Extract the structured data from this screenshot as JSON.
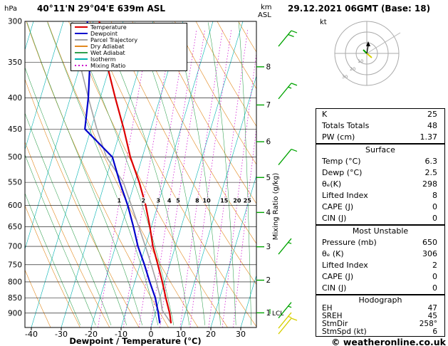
{
  "meta": {
    "station_title": "40°11'N 29°04'E  639m ASL",
    "date_title": "29.12.2021 06GMT (Base: 18)",
    "copyright": "© weatheronline.co.uk"
  },
  "axes": {
    "pressure_unit": "hPa",
    "pressure_ticks": [
      300,
      350,
      400,
      450,
      500,
      550,
      600,
      650,
      700,
      750,
      800,
      850,
      900
    ],
    "temp_ticks": [
      -40,
      -30,
      -20,
      -10,
      0,
      10,
      20,
      30
    ],
    "xlabel": "Dewpoint / Temperature (°C)",
    "right_axis_unit_1": "km",
    "right_axis_unit_2": "ASL",
    "km_ticks": [
      8,
      7,
      6,
      5,
      4,
      3,
      2,
      1
    ],
    "lcl_label": "LCL",
    "mixing_axis_label": "Mixing Ratio (g/kg)",
    "mixing_ratio_ticks": [
      1,
      2,
      3,
      4,
      5,
      8,
      10,
      15,
      20,
      25
    ]
  },
  "legend": [
    {
      "label": "Temperature",
      "color": "#dd0000",
      "dash": ""
    },
    {
      "label": "Dewpoint",
      "color": "#0000cc",
      "dash": ""
    },
    {
      "label": "Parcel Trajectory",
      "color": "#a3a3a3",
      "dash": ""
    },
    {
      "label": "Dry Adiabat",
      "color": "#e2891f",
      "dash": ""
    },
    {
      "label": "Wet Adiabat",
      "color": "#2fa04e",
      "dash": ""
    },
    {
      "label": "Isotherm",
      "color": "#00b2b2",
      "dash": ""
    },
    {
      "label": "Mixing Ratio",
      "color": "#cc00cc",
      "dash": "2,3"
    }
  ],
  "hodograph": {
    "unit": "kt",
    "ring_labels": [
      "10",
      "20",
      "30"
    ]
  },
  "tables": [
    {
      "header": null,
      "rows": [
        [
          "K",
          "25"
        ],
        [
          "Totals Totals",
          "48"
        ],
        [
          "PW (cm)",
          "1.37"
        ]
      ]
    },
    {
      "header": "Surface",
      "rows": [
        [
          "Temp (°C)",
          "6.3"
        ],
        [
          "Dewp (°C)",
          "2.5"
        ],
        [
          "θₑ(K)",
          "298"
        ],
        [
          "Lifted Index",
          "8"
        ],
        [
          "CAPE (J)",
          "0"
        ],
        [
          "CIN (J)",
          "0"
        ]
      ]
    },
    {
      "header": "Most Unstable",
      "rows": [
        [
          "Pressure (mb)",
          "650"
        ],
        [
          "θₑ (K)",
          "306"
        ],
        [
          "Lifted Index",
          "2"
        ],
        [
          "CAPE (J)",
          "0"
        ],
        [
          "CIN (J)",
          "0"
        ]
      ]
    },
    {
      "header": "Hodograph",
      "rows": [
        [
          "EH",
          "47"
        ],
        [
          "SREH",
          "45"
        ],
        [
          "StmDir",
          "258°"
        ],
        [
          "StmSpd (kt)",
          "6"
        ]
      ]
    }
  ],
  "chart_data": {
    "type": "line",
    "title": "Skew-T log-P sounding 40°11'N 29°04'E 639m ASL",
    "x_axis": {
      "label": "Dewpoint / Temperature (°C)",
      "ticks": [
        -40,
        -30,
        -20,
        -10,
        0,
        10,
        20,
        30
      ]
    },
    "y_axis": {
      "label": "hPa",
      "scale": "log",
      "ticks": [
        300,
        350,
        400,
        450,
        500,
        550,
        600,
        650,
        700,
        750,
        800,
        850,
        900
      ],
      "range": [
        300,
        950
      ]
    },
    "secondary_y_axis": {
      "label": "km ASL",
      "ticks": [
        8,
        7,
        6,
        5,
        4,
        3,
        2,
        1
      ],
      "marker": "LCL"
    },
    "mixing_ratio_lines_g_kg": [
      1,
      2,
      3,
      4,
      5,
      8,
      10,
      15,
      20,
      25
    ],
    "series": [
      {
        "name": "Temperature",
        "color": "#dd0000",
        "points": [
          [
            935,
            6.3
          ],
          [
            900,
            4.8
          ],
          [
            850,
            2
          ],
          [
            800,
            -0.8
          ],
          [
            750,
            -4
          ],
          [
            700,
            -7.5
          ],
          [
            650,
            -10.5
          ],
          [
            600,
            -14
          ],
          [
            550,
            -18.5
          ],
          [
            500,
            -24
          ],
          [
            450,
            -29
          ],
          [
            400,
            -35
          ],
          [
            350,
            -41.5
          ],
          [
            300,
            -48
          ]
        ]
      },
      {
        "name": "Dewpoint",
        "color": "#0000cc",
        "points": [
          [
            935,
            2.5
          ],
          [
            900,
            1
          ],
          [
            850,
            -1.5
          ],
          [
            800,
            -5
          ],
          [
            750,
            -8.5
          ],
          [
            700,
            -12.5
          ],
          [
            650,
            -16
          ],
          [
            600,
            -20
          ],
          [
            550,
            -25
          ],
          [
            500,
            -30
          ],
          [
            450,
            -42
          ],
          [
            400,
            -44
          ],
          [
            350,
            -47
          ],
          [
            300,
            -52
          ]
        ]
      },
      {
        "name": "Parcel Trajectory",
        "color": "#a3a3a3",
        "points": [
          [
            935,
            6.3
          ],
          [
            890,
            2
          ],
          [
            850,
            0.2
          ],
          [
            800,
            -2.8
          ],
          [
            750,
            -6.2
          ],
          [
            700,
            -10
          ],
          [
            650,
            -14.2
          ],
          [
            600,
            -18.8
          ],
          [
            550,
            -23.8
          ],
          [
            500,
            -32
          ],
          [
            450,
            -38
          ],
          [
            400,
            -44
          ],
          [
            350,
            -50.5
          ],
          [
            300,
            -57
          ]
        ]
      }
    ],
    "wind_barbs": [
      {
        "pressure": 320,
        "speed_kt": 20,
        "color": "#00a300"
      },
      {
        "pressure": 390,
        "speed_kt": 15,
        "color": "#00a300"
      },
      {
        "pressure": 500,
        "speed_kt": 10,
        "color": "#00a300"
      },
      {
        "pressure": 700,
        "speed_kt": 5,
        "color": "#00a300"
      },
      {
        "pressure": 890,
        "speed_kt": 5,
        "color": "#00a300"
      },
      {
        "pressure": 925,
        "speed_kt": 5,
        "color": "#d6cf00"
      },
      {
        "pressure": 945,
        "speed_kt": 10,
        "color": "#d6cf00"
      }
    ]
  }
}
